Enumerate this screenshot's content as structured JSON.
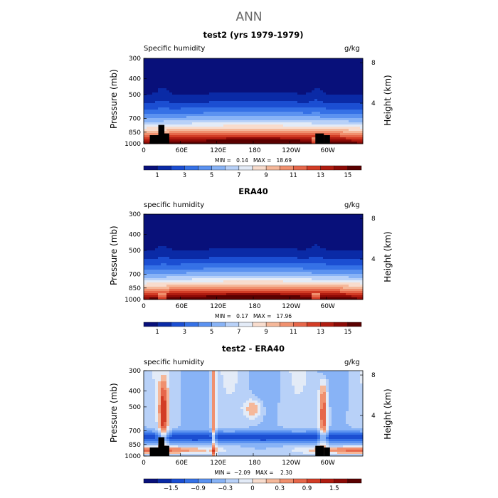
{
  "page": {
    "title": "ANN"
  },
  "chart_data": [
    {
      "type": "heatmap",
      "title": "test2 (yrs 1979-1979)",
      "variable": "Specific humidity",
      "units": "g/kg",
      "ylabel": "Pressure (mb)",
      "y2label": "Height (km)",
      "x_ticks": [
        "0",
        "60E",
        "120E",
        "180",
        "120W",
        "60W"
      ],
      "x_tick_lon": [
        0,
        60,
        120,
        180,
        240,
        300
      ],
      "xlim": [
        0,
        360
      ],
      "y_ticks": [
        "300",
        "400",
        "500",
        "700",
        "850",
        "1000"
      ],
      "y_tick_p": [
        300,
        400,
        500,
        700,
        850,
        1000
      ],
      "ylim": [
        1000,
        300
      ],
      "y_log_scale": true,
      "y2_ticks": [
        "8",
        "4"
      ],
      "y2_tick_km": [
        8,
        4
      ],
      "min": "0.14",
      "max": "18.69",
      "colorbar_labels": [
        "1",
        "3",
        "5",
        "7",
        "9",
        "11",
        "13",
        "15"
      ],
      "topography": true,
      "palette": "humidity"
    },
    {
      "type": "heatmap",
      "title": "ERA40",
      "variable": "specific humidity",
      "units": "g/kg",
      "ylabel": "Pressure (mb)",
      "y2label": "Height (km)",
      "x_ticks": [
        "0",
        "60E",
        "120E",
        "180",
        "120W",
        "60W"
      ],
      "x_tick_lon": [
        0,
        60,
        120,
        180,
        240,
        300
      ],
      "xlim": [
        0,
        360
      ],
      "y_ticks": [
        "300",
        "400",
        "500",
        "700",
        "850",
        "1000"
      ],
      "y_tick_p": [
        300,
        400,
        500,
        700,
        850,
        1000
      ],
      "ylim": [
        1000,
        300
      ],
      "y_log_scale": true,
      "y2_ticks": [
        "8",
        "4"
      ],
      "y2_tick_km": [
        8,
        4
      ],
      "min": "0.17",
      "max": "17.96",
      "colorbar_labels": [
        "1",
        "3",
        "5",
        "7",
        "9",
        "11",
        "13",
        "15"
      ],
      "topography": false,
      "palette": "humidity"
    },
    {
      "type": "heatmap",
      "title": "test2 - ERA40",
      "variable": "specific humidity",
      "units": "g/kg",
      "ylabel": "Pressure (mb)",
      "y2label": "Height (km)",
      "x_ticks": [
        "0",
        "60E",
        "120E",
        "180",
        "120W",
        "60W"
      ],
      "x_tick_lon": [
        0,
        60,
        120,
        180,
        240,
        300
      ],
      "xlim": [
        0,
        360
      ],
      "y_ticks": [
        "300",
        "400",
        "500",
        "700",
        "850",
        "1000"
      ],
      "y_tick_p": [
        300,
        400,
        500,
        700,
        850,
        1000
      ],
      "ylim": [
        1000,
        300
      ],
      "y_log_scale": true,
      "y2_ticks": [
        "8",
        "4"
      ],
      "y2_tick_km": [
        8,
        4
      ],
      "min": "−2.09",
      "max": "2.30",
      "colorbar_labels": [
        "−1.5",
        "−0.9",
        "−0.3",
        "0",
        "0.3",
        "0.9",
        "1.5"
      ],
      "topography": true,
      "palette": "difference"
    }
  ],
  "colors": {
    "humidity": [
      "#08107a",
      "#0a2aa6",
      "#1b4ed2",
      "#3571e6",
      "#5b92f0",
      "#88b3f6",
      "#b8d1f8",
      "#e3ebf7",
      "#f8dccd",
      "#f5b89a",
      "#f0906e",
      "#e6674a",
      "#d23c25",
      "#b01c10",
      "#8c0a06",
      "#5a0000"
    ],
    "difference": [
      "#08107a",
      "#0a2aa6",
      "#1b4ed2",
      "#3571e6",
      "#5b92f0",
      "#88b3f6",
      "#b8d1f8",
      "#e3ebf7",
      "#f8dccd",
      "#f5b89a",
      "#f0906e",
      "#e6674a",
      "#d23c25",
      "#b01c10",
      "#8c0a06",
      "#5a0000"
    ]
  }
}
